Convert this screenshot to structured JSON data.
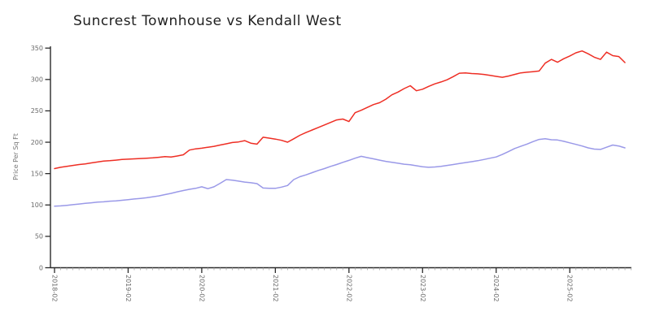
{
  "chart_data": {
    "type": "line",
    "title": "Suncrest Townhouse vs Kendall West",
    "xlabel": "",
    "ylabel": "Price Per Sq Ft",
    "ylim": [
      0,
      350
    ],
    "y_ticks": [
      0,
      50,
      100,
      150,
      200,
      250,
      300,
      350
    ],
    "x_tick_labels": [
      "2018-02",
      "2019-02",
      "2020-02",
      "2021-02",
      "2022-02",
      "2023-02",
      "2024-02",
      "2025-02"
    ],
    "grid": false,
    "legend": "none",
    "categories": [
      "2018-02",
      "2018-03",
      "2018-04",
      "2018-05",
      "2018-06",
      "2018-07",
      "2018-08",
      "2018-09",
      "2018-10",
      "2018-11",
      "2018-12",
      "2019-01",
      "2019-02",
      "2019-03",
      "2019-04",
      "2019-05",
      "2019-06",
      "2019-07",
      "2019-08",
      "2019-09",
      "2019-10",
      "2019-11",
      "2019-12",
      "2020-01",
      "2020-02",
      "2020-03",
      "2020-04",
      "2020-05",
      "2020-06",
      "2020-07",
      "2020-08",
      "2020-09",
      "2020-10",
      "2020-11",
      "2020-12",
      "2021-01",
      "2021-02",
      "2021-03",
      "2021-04",
      "2021-05",
      "2021-06",
      "2021-07",
      "2021-08",
      "2021-09",
      "2021-10",
      "2021-11",
      "2021-12",
      "2022-01",
      "2022-02",
      "2022-03",
      "2022-04",
      "2022-05",
      "2022-06",
      "2022-07",
      "2022-08",
      "2022-09",
      "2022-10",
      "2022-11",
      "2022-12",
      "2023-01",
      "2023-02",
      "2023-03",
      "2023-04",
      "2023-05",
      "2023-06",
      "2023-07",
      "2023-08",
      "2023-09",
      "2023-10",
      "2023-11",
      "2023-12",
      "2024-01",
      "2024-02",
      "2024-03",
      "2024-04",
      "2024-05",
      "2024-06",
      "2024-07",
      "2024-08",
      "2024-09",
      "2024-10",
      "2024-11",
      "2024-12",
      "2025-01",
      "2025-02",
      "2025-03",
      "2025-04",
      "2025-05",
      "2025-06",
      "2025-07",
      "2025-08",
      "2025-09",
      "2025-10",
      "2025-11"
    ],
    "series": [
      {
        "name": "Suncrest Townhouse",
        "color": "#ee2e24",
        "values": [
          158,
          160,
          161.5,
          163,
          164.5,
          165.5,
          167,
          168.5,
          170,
          170.5,
          171.5,
          172.5,
          173,
          173.5,
          174,
          174.5,
          175,
          176,
          177,
          176.5,
          178,
          180,
          187.5,
          189.5,
          190.5,
          192,
          193.5,
          195.5,
          197.5,
          199.5,
          200.5,
          202.5,
          198.5,
          197,
          208,
          206.5,
          205,
          203,
          200,
          205.5,
          211,
          215.5,
          219.5,
          223.5,
          227.5,
          231.5,
          235.5,
          237,
          233,
          247,
          251,
          255.5,
          260,
          263,
          268.5,
          275.5,
          280,
          285.5,
          290,
          282,
          284.5,
          289,
          293,
          296,
          299.5,
          304.5,
          310,
          310.5,
          309.5,
          309,
          308,
          306.5,
          305,
          303.5,
          305.5,
          308,
          310.5,
          311.5,
          312.5,
          313.5,
          326,
          332,
          327.5,
          333,
          337.5,
          342.5,
          345.5,
          341,
          335.5,
          332,
          343.5,
          338,
          336.5,
          327
        ]
      },
      {
        "name": "Kendall West",
        "color": "#9a99e8",
        "values": [
          98,
          98.5,
          99.5,
          100.5,
          101.5,
          102.5,
          103.5,
          104.5,
          105,
          106,
          106.5,
          107.5,
          108.5,
          109.5,
          110.5,
          111.5,
          113,
          114.5,
          116.5,
          118.5,
          121,
          123,
          125,
          126.5,
          129,
          126,
          129,
          134.5,
          140.5,
          139.5,
          138,
          136.5,
          135.5,
          134,
          127,
          126.5,
          126.5,
          128.5,
          131,
          140.5,
          145,
          148,
          151.5,
          155,
          158,
          161.5,
          164.5,
          168,
          171,
          174.5,
          177.5,
          175.5,
          173.5,
          171.5,
          169.5,
          168,
          166.5,
          165,
          164,
          162.5,
          161,
          160,
          160.5,
          161.5,
          163,
          164.5,
          166,
          167.5,
          169,
          170.5,
          172.5,
          174.5,
          176.5,
          180.5,
          185,
          190,
          193.5,
          197,
          201,
          204.5,
          205.5,
          204,
          203.5,
          201.5,
          199,
          196.5,
          194,
          191,
          189,
          188.5,
          192,
          195.5,
          194,
          191
        ]
      }
    ]
  }
}
